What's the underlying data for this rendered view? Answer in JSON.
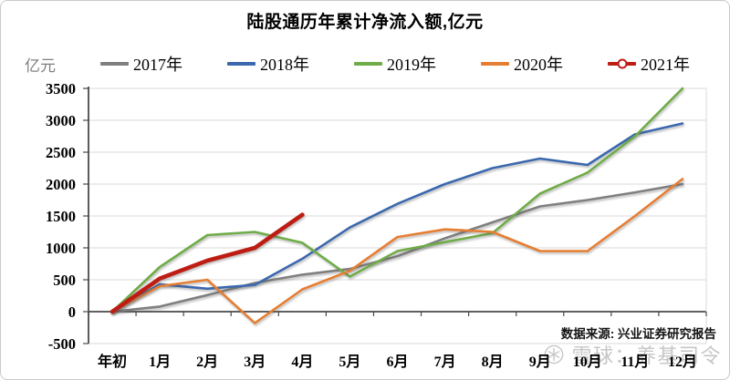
{
  "title": "陆股通历年累计净流入额,亿元",
  "y_axis_unit": "亿元",
  "source_note": "数据来源: 兴业证券研究报告",
  "watermark": {
    "icon": "snowflake-in-circle",
    "text": "雪球：养基司令"
  },
  "colors": {
    "grid": "#DADADA",
    "axis": "#4a4a4a",
    "series_2017": "#7F7F7F",
    "series_2018": "#3B68AE",
    "series_2019": "#6FAC47",
    "series_2020": "#E67E32",
    "series_2021": "#BE1D14"
  },
  "chart_data": {
    "type": "line",
    "title": "陆股通历年累计净流入额,亿元",
    "xlabel": "",
    "ylabel": "亿元",
    "ylim": [
      -500,
      3500
    ],
    "ytick_step": 500,
    "grid": true,
    "legend_position": "top",
    "categories": [
      "年初",
      "1月",
      "2月",
      "3月",
      "4月",
      "5月",
      "6月",
      "7月",
      "8月",
      "9月",
      "10月",
      "11月",
      "12月"
    ],
    "series": [
      {
        "name": "2017年",
        "color": "#7F7F7F",
        "line_width": 2.6,
        "values": [
          0,
          80,
          260,
          450,
          580,
          670,
          870,
          1150,
          1400,
          1650,
          1750,
          1870,
          2000
        ]
      },
      {
        "name": "2018年",
        "color": "#3B68AE",
        "line_width": 2.6,
        "values": [
          0,
          430,
          360,
          420,
          830,
          1320,
          1690,
          2000,
          2250,
          2400,
          2300,
          2780,
          2950
        ]
      },
      {
        "name": "2019年",
        "color": "#6FAC47",
        "line_width": 2.6,
        "values": [
          0,
          700,
          1200,
          1250,
          1080,
          550,
          950,
          1090,
          1230,
          1850,
          2180,
          2750,
          3500
        ]
      },
      {
        "name": "2020年",
        "color": "#E67E32",
        "line_width": 2.6,
        "values": [
          0,
          400,
          500,
          -180,
          350,
          640,
          1170,
          1290,
          1250,
          950,
          950,
          1500,
          2080
        ]
      },
      {
        "name": "2021年",
        "color": "#BE1D14",
        "line_width": 4.6,
        "marker": "circle",
        "values": [
          0,
          520,
          800,
          1000,
          1520
        ]
      }
    ]
  }
}
